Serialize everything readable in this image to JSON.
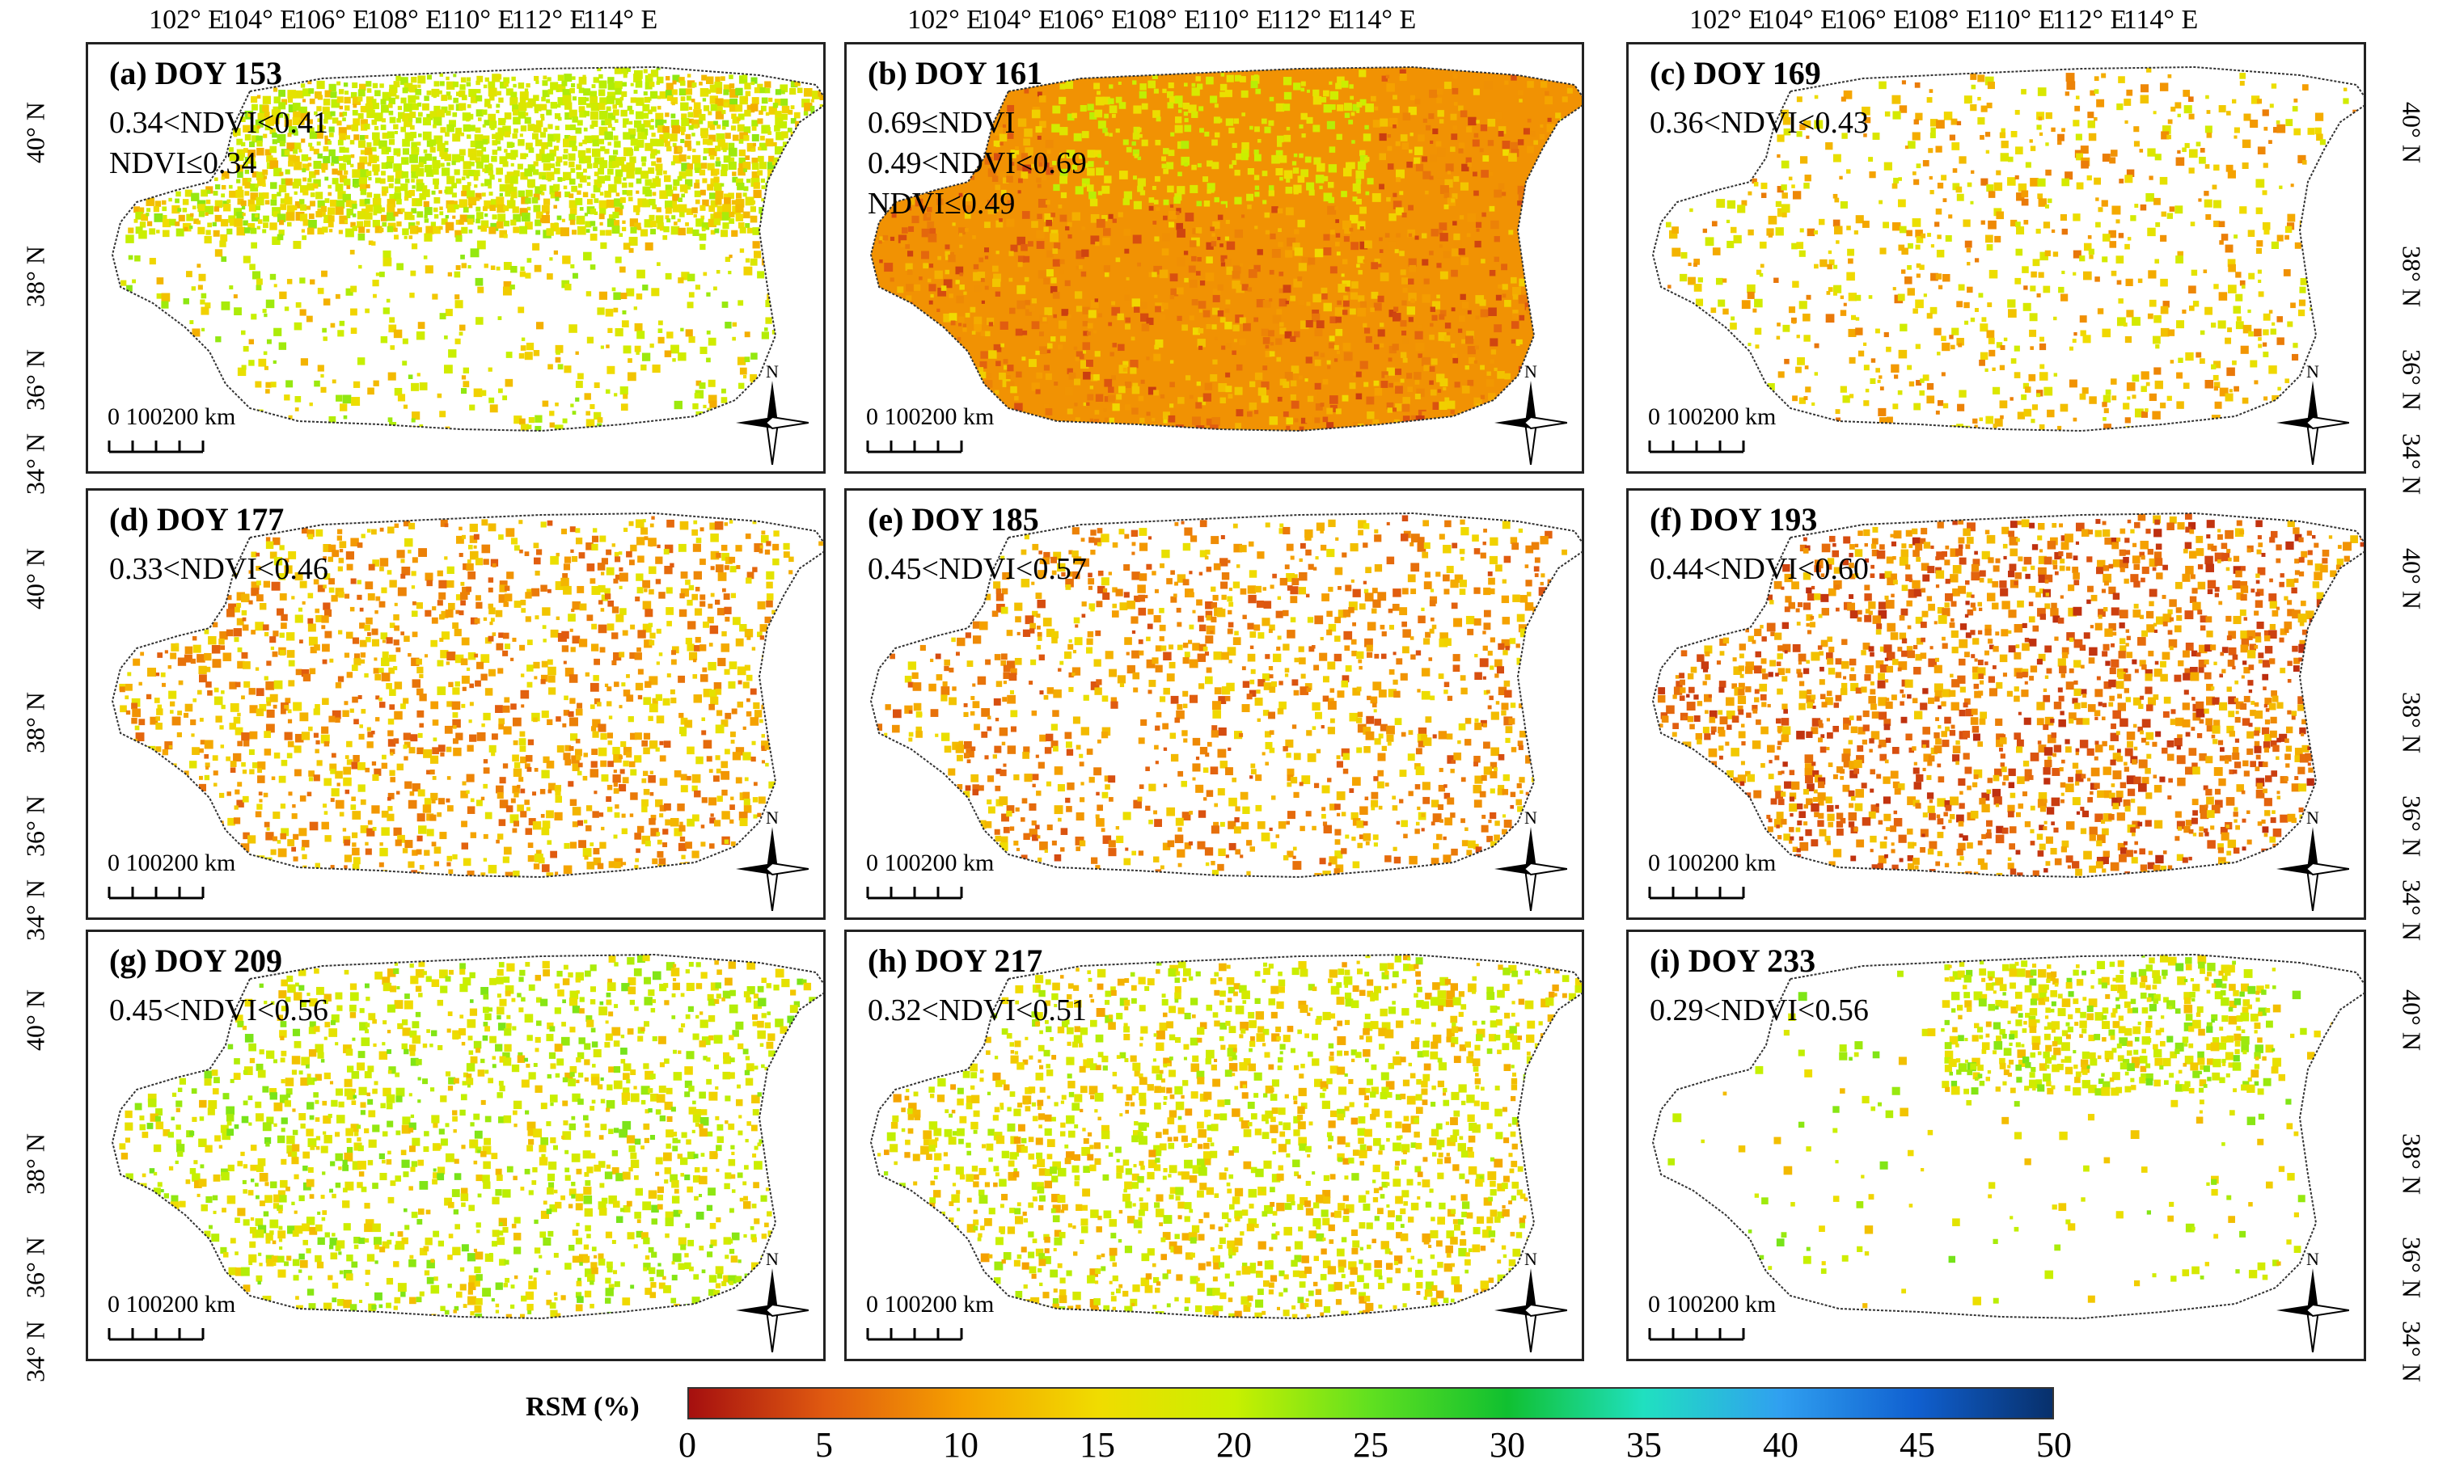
{
  "top_ticks": [
    "102° E",
    "104° E",
    "106° E",
    "108° E",
    "110° E",
    "112° E",
    "114° E"
  ],
  "side_ticks": [
    "40° N",
    "38° N",
    "36° N",
    "34° N"
  ],
  "panels": [
    {
      "title": "(a) DOY 153",
      "ndvi": [
        "0.34<NDVI<0.41",
        "NDVI≤0.34"
      ],
      "dominant_rsm": 17,
      "coverage": 0.55,
      "pattern": "north"
    },
    {
      "title": "(b) DOY 161",
      "ndvi": [
        "0.69≤NDVI",
        "0.49<NDVI<0.69",
        "NDVI≤0.49"
      ],
      "dominant_rsm": 9,
      "coverage": 0.97,
      "pattern": "full"
    },
    {
      "title": "(c) DOY 169",
      "ndvi": [
        "0.36<NDVI<0.43"
      ],
      "dominant_rsm": 13,
      "coverage": 0.22,
      "pattern": "sparse"
    },
    {
      "title": "(d) DOY 177",
      "ndvi": [
        "0.33<NDVI<0.46"
      ],
      "dominant_rsm": 11,
      "coverage": 0.35,
      "pattern": "sparse"
    },
    {
      "title": "(e) DOY 185",
      "ndvi": [
        "0.45<NDVI<0.57"
      ],
      "dominant_rsm": 10,
      "coverage": 0.3,
      "pattern": "sparse"
    },
    {
      "title": "(f) DOY 193",
      "ndvi": [
        "0.44<NDVI<0.60"
      ],
      "dominant_rsm": 8,
      "coverage": 0.45,
      "pattern": "sparse"
    },
    {
      "title": "(g) DOY 209",
      "ndvi": [
        "0.45<NDVI<0.56"
      ],
      "dominant_rsm": 18,
      "coverage": 0.35,
      "pattern": "sparse"
    },
    {
      "title": "(h) DOY 217",
      "ndvi": [
        "0.32<NDVI<0.51"
      ],
      "dominant_rsm": 16,
      "coverage": 0.4,
      "pattern": "sparse"
    },
    {
      "title": "(i) DOY 233",
      "ndvi": [
        "0.29<NDVI<0.56"
      ],
      "dominant_rsm": 18,
      "coverage": 0.12,
      "pattern": "north-small"
    }
  ],
  "scalebar": {
    "label": "0  100200 km"
  },
  "north_arrow": {
    "label": "N"
  },
  "colorbar": {
    "label": "RSM (%)",
    "min": 0,
    "max": 50,
    "ticks": [
      "0",
      "5",
      "10",
      "15",
      "20",
      "25",
      "30",
      "35",
      "40",
      "45",
      "50"
    ],
    "stops": [
      "#a50f0f",
      "#e05a10",
      "#f5a000",
      "#f0dc00",
      "#c8f000",
      "#60e020",
      "#10c030",
      "#20e0c0",
      "#30a0f0",
      "#1060d0",
      "#08306b"
    ]
  },
  "colors": {
    "frame": "#222222",
    "boundary": "#333333"
  }
}
